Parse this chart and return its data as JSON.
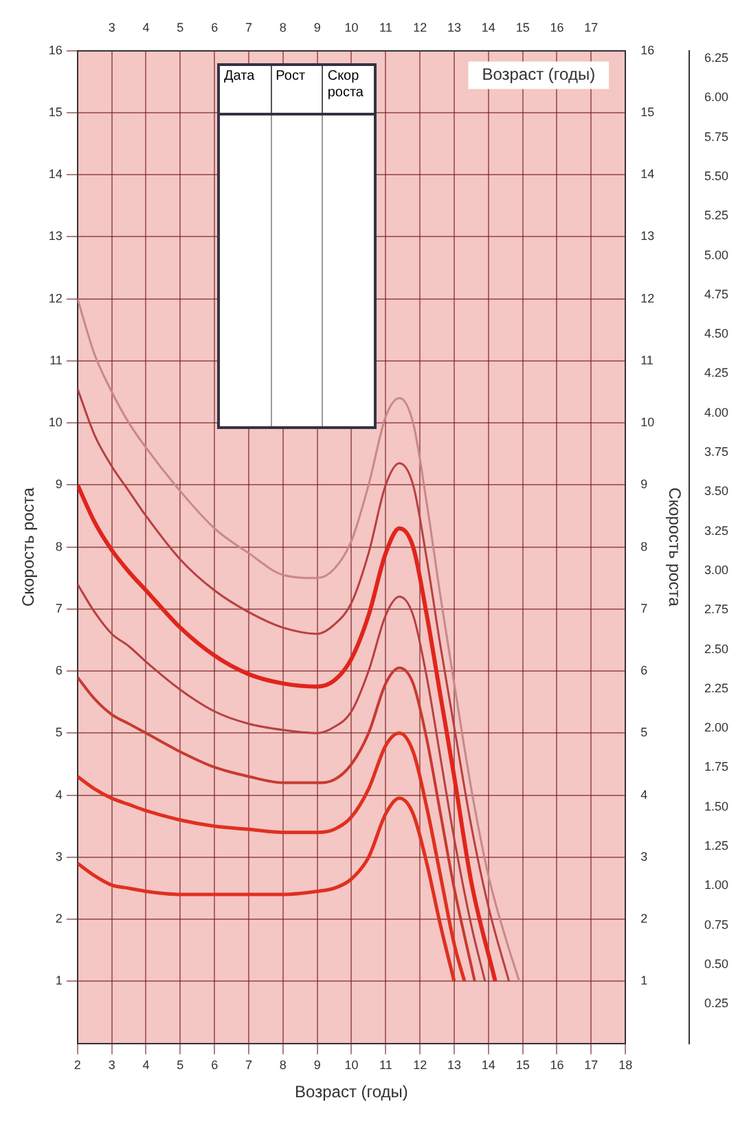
{
  "chart_data": {
    "type": "line",
    "xlabel": "Возраст (годы)",
    "ylabel": "Скорость роста",
    "y2label": "Скорость роста",
    "annotations": [
      "Возраст (годы)",
      "Дата",
      "Рост",
      "Скор роста"
    ],
    "xlim": [
      2,
      18
    ],
    "xticks": [
      2,
      3,
      4,
      5,
      6,
      7,
      8,
      9,
      10,
      11,
      12,
      13,
      14,
      15,
      16,
      17,
      18
    ],
    "x2lim": [
      2,
      18
    ],
    "x2ticks": [
      3,
      4,
      5,
      6,
      7,
      8,
      9,
      10,
      11,
      12,
      13,
      14,
      15,
      16,
      17
    ],
    "ylim": [
      0,
      16
    ],
    "yticks": [
      1,
      2,
      3,
      4,
      5,
      6,
      7,
      8,
      9,
      10,
      11,
      12,
      13,
      14,
      15,
      16
    ],
    "y2lim": [
      0,
      16
    ],
    "y2ticks": [
      1,
      2,
      3,
      4,
      5,
      6,
      7,
      8,
      9,
      10,
      11,
      12,
      13,
      14,
      15,
      16
    ],
    "y3lim": [
      0,
      6.3
    ],
    "y3ticks": [
      0.25,
      {
        "value": 0.5,
        "label": "0.50"
      },
      0.75,
      {
        "value": 1,
        "label": "1.00"
      },
      1.25,
      {
        "value": 1.5,
        "label": "1.50"
      },
      1.75,
      {
        "value": 2,
        "label": "2.00"
      },
      2.25,
      {
        "value": 2.5,
        "label": "2.50"
      },
      2.75,
      {
        "value": 3,
        "label": "3.00"
      },
      3.25,
      {
        "value": 3.5,
        "label": "3.50"
      },
      3.75,
      {
        "value": 4,
        "label": "4.00"
      },
      4.25,
      {
        "value": 4.5,
        "label": "4.50"
      },
      4.75,
      {
        "value": 5,
        "label": "5.00"
      },
      5.25,
      {
        "value": 5.5,
        "label": "5.50"
      },
      5.75,
      {
        "value": 6,
        "label": "6.00"
      },
      6.25
    ],
    "grid": true,
    "legend": false,
    "marker": "none",
    "line_style": "solid",
    "series": [
      {
        "color": "#c98888",
        "x": [
          2,
          2.5,
          3,
          3.5,
          4,
          5,
          6,
          7,
          8,
          9,
          9.5,
          10,
          10.5,
          11,
          11.4,
          11.8,
          12.2,
          12.6,
          13,
          13.5,
          14,
          14.5,
          14.9
        ],
        "values": [
          12.0,
          11.1,
          10.5,
          10.0,
          9.6,
          8.9,
          8.3,
          7.9,
          7.55,
          7.5,
          7.65,
          8.1,
          9.0,
          10.1,
          10.4,
          10.0,
          8.7,
          7.2,
          5.8,
          4.1,
          2.7,
          1.7,
          1.0
        ]
      },
      {
        "color": "#b84040",
        "x": [
          2,
          2.5,
          3,
          3.5,
          4,
          5,
          6,
          7,
          8,
          9,
          9.5,
          10,
          10.5,
          11,
          11.4,
          11.8,
          12.2,
          12.6,
          13,
          13.5,
          14,
          14.6
        ],
        "values": [
          10.55,
          9.8,
          9.3,
          8.9,
          8.5,
          7.8,
          7.3,
          6.95,
          6.7,
          6.6,
          6.75,
          7.1,
          7.9,
          9.0,
          9.35,
          9.0,
          7.8,
          6.4,
          5.1,
          3.5,
          2.2,
          1.0
        ]
      },
      {
        "color": "#e0251c",
        "x": [
          2,
          2.5,
          3,
          3.5,
          4,
          5,
          6,
          7,
          8,
          9,
          9.5,
          10,
          10.5,
          11,
          11.4,
          11.8,
          12.2,
          12.6,
          13,
          13.5,
          14.2
        ],
        "values": [
          9.0,
          8.4,
          7.95,
          7.6,
          7.3,
          6.7,
          6.25,
          5.95,
          5.8,
          5.75,
          5.85,
          6.2,
          6.9,
          7.9,
          8.3,
          8.0,
          6.9,
          5.6,
          4.3,
          2.6,
          1.0
        ]
      },
      {
        "color": "#b84040",
        "x": [
          2,
          2.5,
          3,
          3.5,
          4,
          5,
          6,
          7,
          8,
          9,
          9.5,
          10,
          10.5,
          11,
          11.4,
          11.8,
          12.2,
          12.6,
          13,
          13.5,
          13.9
        ],
        "values": [
          7.4,
          6.95,
          6.6,
          6.4,
          6.15,
          5.7,
          5.35,
          5.15,
          5.05,
          5.0,
          5.1,
          5.35,
          6.0,
          6.9,
          7.2,
          6.9,
          5.9,
          4.6,
          3.3,
          1.9,
          1.0
        ]
      },
      {
        "color": "#c83a30",
        "x": [
          2,
          2.5,
          3,
          3.5,
          4,
          5,
          6,
          7,
          8,
          9,
          9.5,
          10,
          10.5,
          11,
          11.4,
          11.8,
          12.2,
          12.6,
          13,
          13.6
        ],
        "values": [
          5.9,
          5.55,
          5.3,
          5.15,
          5.0,
          4.7,
          4.45,
          4.3,
          4.2,
          4.2,
          4.25,
          4.5,
          5.0,
          5.8,
          6.05,
          5.8,
          4.9,
          3.7,
          2.5,
          1.0
        ]
      },
      {
        "color": "#e0301f",
        "x": [
          2,
          2.5,
          3,
          3.5,
          4,
          5,
          6,
          7,
          8,
          9,
          9.5,
          10,
          10.5,
          11,
          11.4,
          11.8,
          12.2,
          12.6,
          13,
          13.3
        ],
        "values": [
          4.3,
          4.1,
          3.95,
          3.85,
          3.75,
          3.6,
          3.5,
          3.45,
          3.4,
          3.4,
          3.45,
          3.65,
          4.1,
          4.8,
          5.0,
          4.7,
          3.8,
          2.7,
          1.6,
          1.0
        ]
      },
      {
        "color": "#e0301f",
        "x": [
          2,
          2.5,
          3,
          3.5,
          4,
          5,
          6,
          7,
          8,
          9,
          9.5,
          10,
          10.5,
          11,
          11.4,
          11.8,
          12.2,
          12.6,
          13.0
        ],
        "values": [
          2.9,
          2.7,
          2.55,
          2.5,
          2.45,
          2.4,
          2.4,
          2.4,
          2.4,
          2.45,
          2.5,
          2.65,
          3.0,
          3.7,
          3.95,
          3.7,
          2.9,
          1.9,
          1.0
        ]
      }
    ]
  }
}
